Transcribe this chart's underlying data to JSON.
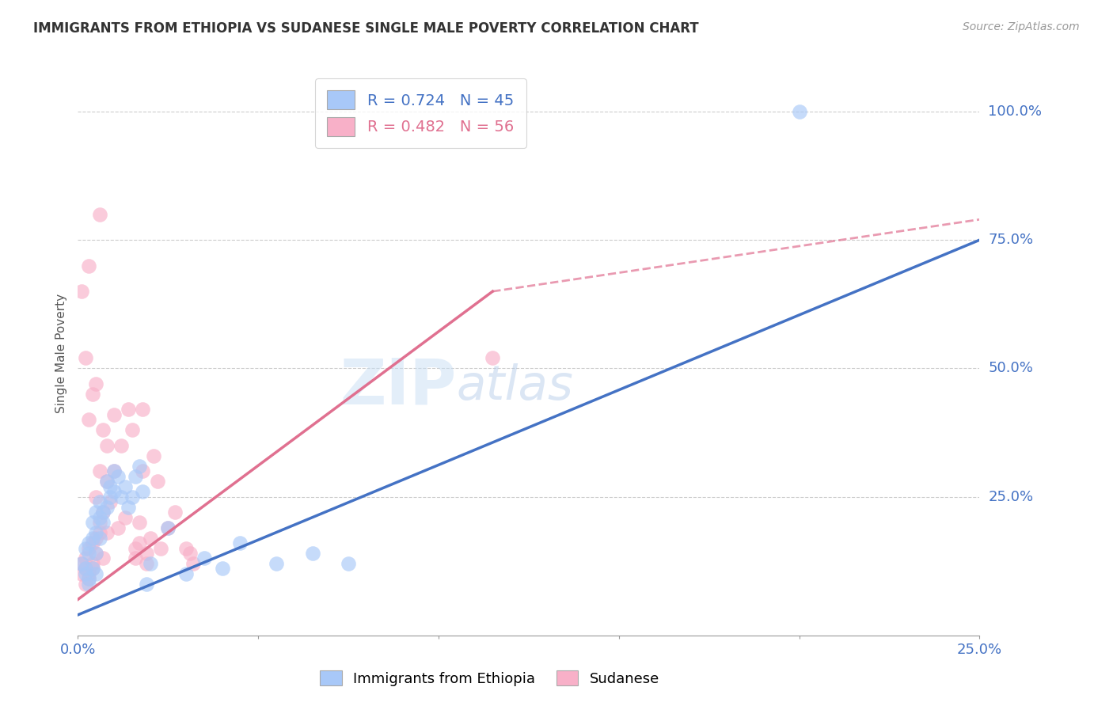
{
  "title": "IMMIGRANTS FROM ETHIOPIA VS SUDANESE SINGLE MALE POVERTY CORRELATION CHART",
  "source": "Source: ZipAtlas.com",
  "ylabel_label": "Single Male Poverty",
  "xlim": [
    0.0,
    0.25
  ],
  "ylim": [
    -0.02,
    1.08
  ],
  "legend_ethiopia_label": "Immigrants from Ethiopia",
  "legend_sudanese_label": "Sudanese",
  "ethiopia_R": "0.724",
  "ethiopia_N": "45",
  "sudanese_R": "0.482",
  "sudanese_N": "56",
  "ethiopia_color": "#a8c8f8",
  "sudanese_color": "#f8b0c8",
  "ethiopia_line_color": "#4472c4",
  "sudanese_line_color": "#e07090",
  "watermark_color": "#ddeeff",
  "ethiopia_points": [
    [
      0.001,
      0.12
    ],
    [
      0.002,
      0.11
    ],
    [
      0.002,
      0.1
    ],
    [
      0.002,
      0.15
    ],
    [
      0.003,
      0.09
    ],
    [
      0.003,
      0.14
    ],
    [
      0.003,
      0.08
    ],
    [
      0.003,
      0.16
    ],
    [
      0.004,
      0.11
    ],
    [
      0.004,
      0.17
    ],
    [
      0.004,
      0.2
    ],
    [
      0.005,
      0.22
    ],
    [
      0.005,
      0.18
    ],
    [
      0.005,
      0.14
    ],
    [
      0.005,
      0.1
    ],
    [
      0.006,
      0.21
    ],
    [
      0.006,
      0.17
    ],
    [
      0.006,
      0.24
    ],
    [
      0.007,
      0.2
    ],
    [
      0.007,
      0.22
    ],
    [
      0.008,
      0.28
    ],
    [
      0.008,
      0.23
    ],
    [
      0.009,
      0.25
    ],
    [
      0.009,
      0.27
    ],
    [
      0.01,
      0.3
    ],
    [
      0.01,
      0.26
    ],
    [
      0.011,
      0.29
    ],
    [
      0.012,
      0.25
    ],
    [
      0.013,
      0.27
    ],
    [
      0.014,
      0.23
    ],
    [
      0.015,
      0.25
    ],
    [
      0.016,
      0.29
    ],
    [
      0.017,
      0.31
    ],
    [
      0.018,
      0.26
    ],
    [
      0.019,
      0.08
    ],
    [
      0.02,
      0.12
    ],
    [
      0.025,
      0.19
    ],
    [
      0.03,
      0.1
    ],
    [
      0.035,
      0.13
    ],
    [
      0.04,
      0.11
    ],
    [
      0.045,
      0.16
    ],
    [
      0.055,
      0.12
    ],
    [
      0.065,
      0.14
    ],
    [
      0.075,
      0.12
    ],
    [
      0.2,
      1.0
    ]
  ],
  "sudanese_points": [
    [
      0.001,
      0.1
    ],
    [
      0.001,
      0.12
    ],
    [
      0.001,
      0.65
    ],
    [
      0.002,
      0.11
    ],
    [
      0.002,
      0.13
    ],
    [
      0.002,
      0.08
    ],
    [
      0.002,
      0.52
    ],
    [
      0.003,
      0.1
    ],
    [
      0.003,
      0.15
    ],
    [
      0.003,
      0.09
    ],
    [
      0.003,
      0.4
    ],
    [
      0.003,
      0.7
    ],
    [
      0.004,
      0.12
    ],
    [
      0.004,
      0.16
    ],
    [
      0.004,
      0.11
    ],
    [
      0.004,
      0.45
    ],
    [
      0.005,
      0.14
    ],
    [
      0.005,
      0.17
    ],
    [
      0.005,
      0.25
    ],
    [
      0.005,
      0.47
    ],
    [
      0.006,
      0.2
    ],
    [
      0.006,
      0.3
    ],
    [
      0.006,
      0.18
    ],
    [
      0.006,
      0.8
    ],
    [
      0.007,
      0.22
    ],
    [
      0.007,
      0.13
    ],
    [
      0.007,
      0.38
    ],
    [
      0.008,
      0.35
    ],
    [
      0.008,
      0.28
    ],
    [
      0.008,
      0.18
    ],
    [
      0.009,
      0.24
    ],
    [
      0.01,
      0.3
    ],
    [
      0.01,
      0.41
    ],
    [
      0.011,
      0.19
    ],
    [
      0.012,
      0.35
    ],
    [
      0.013,
      0.21
    ],
    [
      0.014,
      0.42
    ],
    [
      0.015,
      0.38
    ],
    [
      0.016,
      0.15
    ],
    [
      0.016,
      0.13
    ],
    [
      0.017,
      0.16
    ],
    [
      0.017,
      0.2
    ],
    [
      0.018,
      0.3
    ],
    [
      0.018,
      0.42
    ],
    [
      0.019,
      0.14
    ],
    [
      0.019,
      0.12
    ],
    [
      0.02,
      0.17
    ],
    [
      0.021,
      0.33
    ],
    [
      0.022,
      0.28
    ],
    [
      0.023,
      0.15
    ],
    [
      0.025,
      0.19
    ],
    [
      0.027,
      0.22
    ],
    [
      0.03,
      0.15
    ],
    [
      0.031,
      0.14
    ],
    [
      0.032,
      0.12
    ],
    [
      0.115,
      0.52
    ]
  ],
  "ethiopia_line": {
    "x0": 0.0,
    "y0": 0.02,
    "x1": 0.25,
    "y1": 0.75
  },
  "sudanese_line_solid": {
    "x0": 0.0,
    "y0": 0.05,
    "x1": 0.115,
    "y1": 0.65
  },
  "sudanese_line_dashed": {
    "x0": 0.115,
    "y0": 0.65,
    "x1": 0.25,
    "y1": 0.79
  }
}
